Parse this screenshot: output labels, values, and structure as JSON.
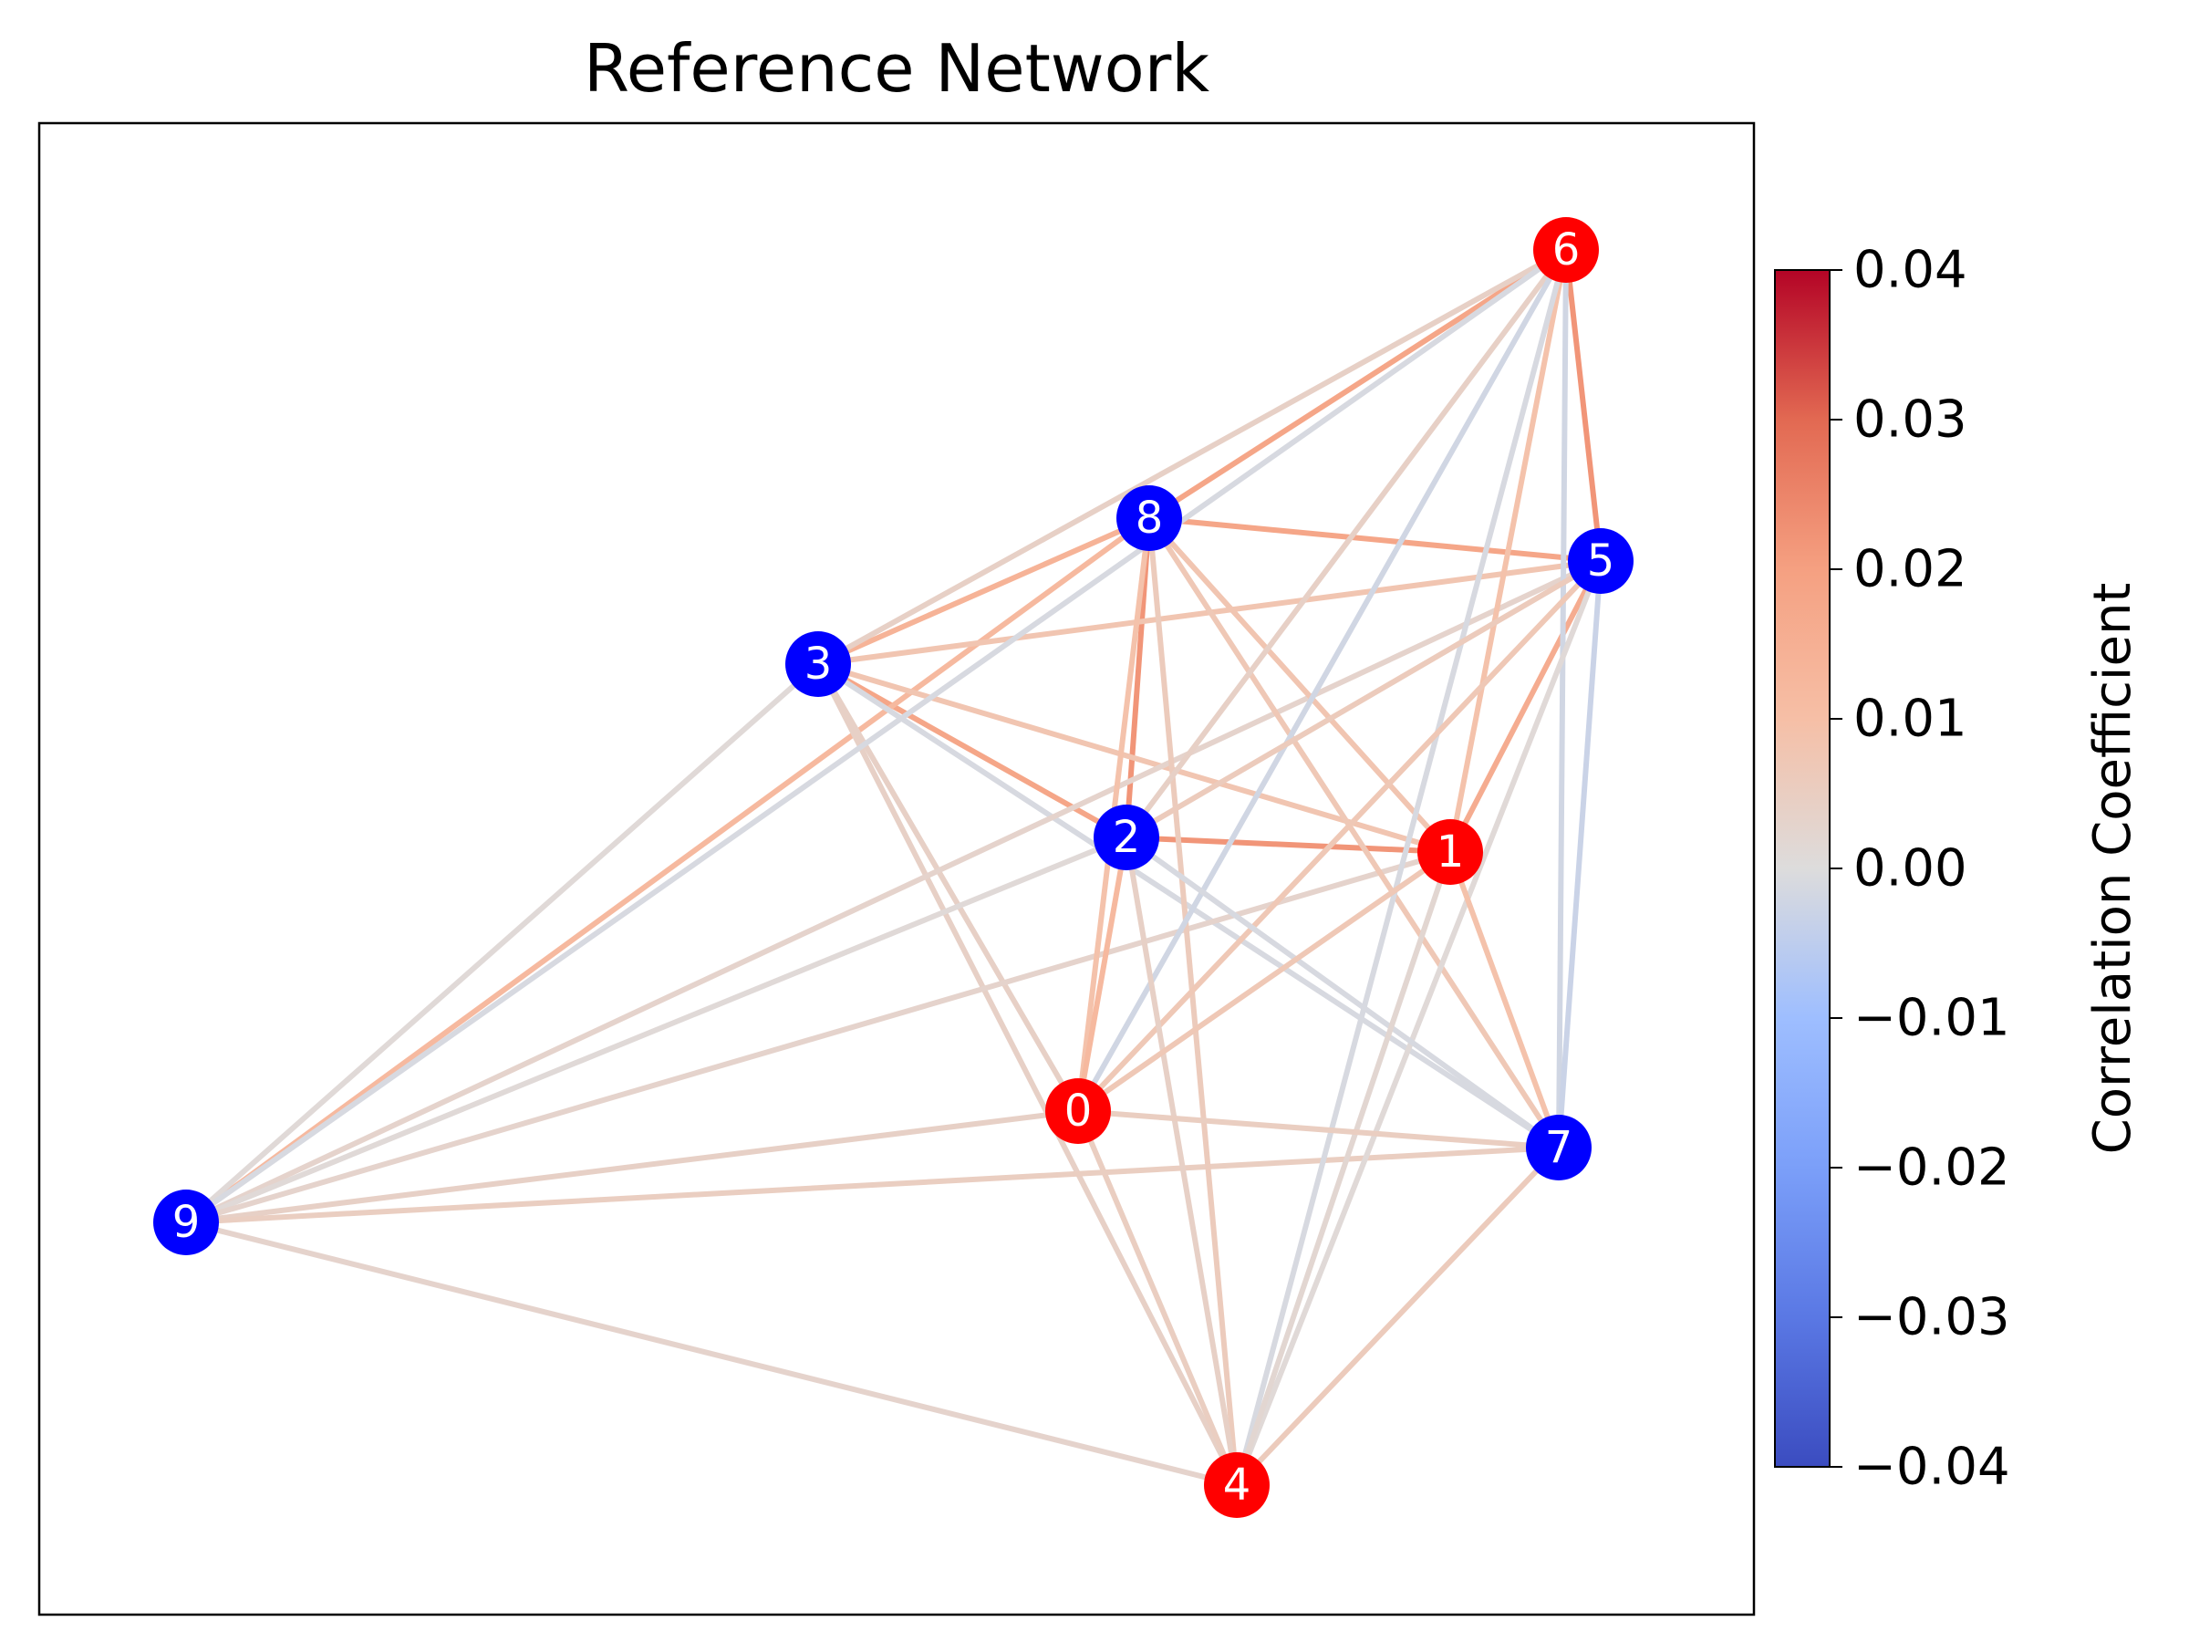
{
  "title": "Reference Network",
  "colorbar": {
    "label": "Correlation Coefficient",
    "min": -0.04,
    "max": 0.04,
    "ticks": [
      "0.04",
      "0.03",
      "0.02",
      "0.01",
      "0.00",
      "−0.01",
      "−0.02",
      "−0.03",
      "−0.04"
    ],
    "tick_values": [
      0.04,
      0.03,
      0.02,
      0.01,
      0.0,
      -0.01,
      -0.02,
      -0.03,
      -0.04
    ],
    "colormap": "coolwarm"
  },
  "colors": {
    "positive_node": "#ff0000",
    "negative_node": "#0000ff",
    "node_label": "#ffffff"
  },
  "chart_data": {
    "type": "network",
    "nodes": [
      {
        "id": "0",
        "group": "red"
      },
      {
        "id": "1",
        "group": "red"
      },
      {
        "id": "2",
        "group": "blue"
      },
      {
        "id": "3",
        "group": "blue"
      },
      {
        "id": "4",
        "group": "red"
      },
      {
        "id": "5",
        "group": "blue"
      },
      {
        "id": "6",
        "group": "red"
      },
      {
        "id": "7",
        "group": "blue"
      },
      {
        "id": "8",
        "group": "blue"
      },
      {
        "id": "9",
        "group": "blue"
      }
    ],
    "edges": [
      {
        "source": "8",
        "target": "6",
        "weight": 0.018
      },
      {
        "source": "6",
        "target": "5",
        "weight": 0.022
      },
      {
        "source": "8",
        "target": "5",
        "weight": 0.018
      },
      {
        "source": "8",
        "target": "2",
        "weight": 0.022
      },
      {
        "source": "2",
        "target": "1",
        "weight": 0.022
      },
      {
        "source": "3",
        "target": "2",
        "weight": 0.018
      },
      {
        "source": "5",
        "target": "1",
        "weight": 0.016
      },
      {
        "source": "3",
        "target": "8",
        "weight": 0.014
      },
      {
        "source": "9",
        "target": "8",
        "weight": 0.012
      },
      {
        "source": "3",
        "target": "6",
        "weight": 0.004
      },
      {
        "source": "3",
        "target": "5",
        "weight": 0.008
      },
      {
        "source": "3",
        "target": "1",
        "weight": 0.008
      },
      {
        "source": "3",
        "target": "7",
        "weight": -0.001
      },
      {
        "source": "3",
        "target": "0",
        "weight": 0.004
      },
      {
        "source": "3",
        "target": "4",
        "weight": 0.004
      },
      {
        "source": "3",
        "target": "9",
        "weight": 0.001
      },
      {
        "source": "9",
        "target": "6",
        "weight": -0.001
      },
      {
        "source": "9",
        "target": "5",
        "weight": 0.003
      },
      {
        "source": "9",
        "target": "2",
        "weight": 0.001
      },
      {
        "source": "9",
        "target": "1",
        "weight": 0.003
      },
      {
        "source": "9",
        "target": "0",
        "weight": 0.004
      },
      {
        "source": "9",
        "target": "7",
        "weight": 0.005
      },
      {
        "source": "9",
        "target": "4",
        "weight": 0.003
      },
      {
        "source": "8",
        "target": "1",
        "weight": 0.008
      },
      {
        "source": "8",
        "target": "7",
        "weight": 0.007
      },
      {
        "source": "8",
        "target": "0",
        "weight": 0.009
      },
      {
        "source": "8",
        "target": "4",
        "weight": 0.006
      },
      {
        "source": "6",
        "target": "2",
        "weight": 0.004
      },
      {
        "source": "6",
        "target": "1",
        "weight": 0.009
      },
      {
        "source": "6",
        "target": "0",
        "weight": -0.002
      },
      {
        "source": "6",
        "target": "7",
        "weight": -0.002
      },
      {
        "source": "6",
        "target": "4",
        "weight": -0.001
      },
      {
        "source": "5",
        "target": "2",
        "weight": 0.006
      },
      {
        "source": "5",
        "target": "0",
        "weight": 0.007
      },
      {
        "source": "5",
        "target": "7",
        "weight": -0.003
      },
      {
        "source": "5",
        "target": "4",
        "weight": 0.001
      },
      {
        "source": "2",
        "target": "0",
        "weight": 0.012
      },
      {
        "source": "2",
        "target": "7",
        "weight": -0.001
      },
      {
        "source": "2",
        "target": "4",
        "weight": 0.004
      },
      {
        "source": "1",
        "target": "0",
        "weight": 0.007
      },
      {
        "source": "1",
        "target": "7",
        "weight": 0.009
      },
      {
        "source": "1",
        "target": "4",
        "weight": 0.002
      },
      {
        "source": "0",
        "target": "7",
        "weight": 0.005
      },
      {
        "source": "0",
        "target": "4",
        "weight": 0.005
      },
      {
        "source": "7",
        "target": "4",
        "weight": 0.006
      }
    ]
  }
}
